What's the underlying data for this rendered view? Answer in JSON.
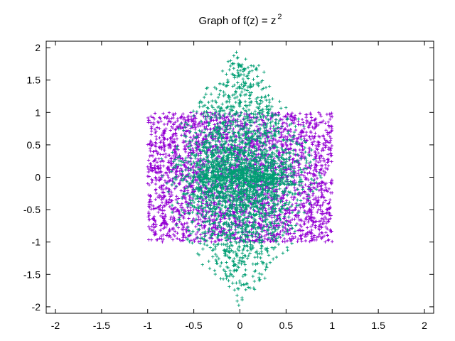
{
  "chart_data": {
    "type": "scatter",
    "title": "Graph of f(z) = z",
    "title_superscript": "2",
    "xlabel": "",
    "ylabel": "",
    "xlim": [
      -2.1,
      2.1
    ],
    "ylim": [
      -2.1,
      2.1
    ],
    "xticks": [
      -2,
      -1.5,
      -1,
      -0.5,
      0,
      0.5,
      1,
      1.5,
      2
    ],
    "xtick_labels": [
      "-2",
      "-1.5",
      "-1",
      "-0.5",
      "0",
      "0.5",
      "1",
      "1.5",
      "2"
    ],
    "yticks": [
      -2,
      -1.5,
      -1,
      -0.5,
      0,
      0.5,
      1,
      1.5,
      2
    ],
    "ytick_labels": [
      "-2",
      "-1.5",
      "-1",
      "-0.5",
      "0",
      "0.5",
      "1",
      "1.5",
      "2"
    ],
    "grid": false,
    "legend": "none",
    "marker": "plus",
    "series": [
      {
        "color": "#9400d3",
        "shape": "uniform square",
        "bounds": {
          "x": [
            -1,
            1
          ],
          "y": [
            -1,
            1
          ]
        },
        "approx_points": 2800
      },
      {
        "color": "#009e73",
        "shape": "hexagon-like image of the square under z^2, dense near origin",
        "bounds": {
          "x": [
            -1,
            1
          ],
          "y": [
            -2,
            2
          ]
        },
        "approx_points": 2800
      }
    ]
  }
}
